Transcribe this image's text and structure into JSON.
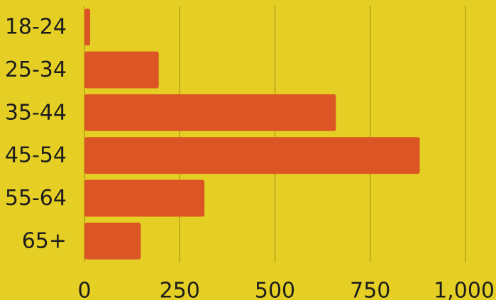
{
  "chart_data": {
    "type": "bar",
    "orientation": "horizontal",
    "categories": [
      "18-24",
      "25-34",
      "35-44",
      "45-54",
      "55-64",
      "65+"
    ],
    "values": [
      15,
      195,
      660,
      880,
      315,
      148
    ],
    "xlim": [
      0,
      1000
    ],
    "xticks": [
      0,
      250,
      500,
      750,
      1000
    ],
    "xtick_labels": [
      "0",
      "250",
      "500",
      "750",
      "1,000"
    ],
    "grid": true,
    "title": "",
    "xlabel": "",
    "ylabel": "",
    "colors": {
      "background": "#e6cf24",
      "bar": "#dc5524",
      "grid": "#a99418",
      "text": "#1d1d1d"
    }
  }
}
